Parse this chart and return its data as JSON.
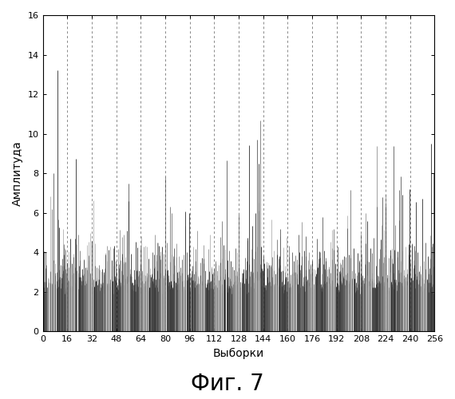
{
  "title": "Фиг. 7",
  "xlabel": "Выборки",
  "ylabel": "Амплитуда",
  "xlim": [
    0,
    256
  ],
  "ylim": [
    0,
    16
  ],
  "xticks": [
    0,
    16,
    32,
    48,
    64,
    80,
    96,
    112,
    128,
    144,
    160,
    176,
    192,
    208,
    224,
    240,
    256
  ],
  "yticks": [
    0,
    2,
    4,
    6,
    8,
    10,
    12,
    14,
    16
  ],
  "vline_positions": [
    16,
    32,
    48,
    64,
    80,
    96,
    112,
    128,
    144,
    160,
    176,
    192,
    208,
    224,
    240,
    256
  ],
  "n_points": 257,
  "seed": 42,
  "background_color": "#ffffff",
  "vline_color": "#888888",
  "title_fontsize": 20,
  "label_fontsize": 10,
  "tick_fontsize": 8
}
